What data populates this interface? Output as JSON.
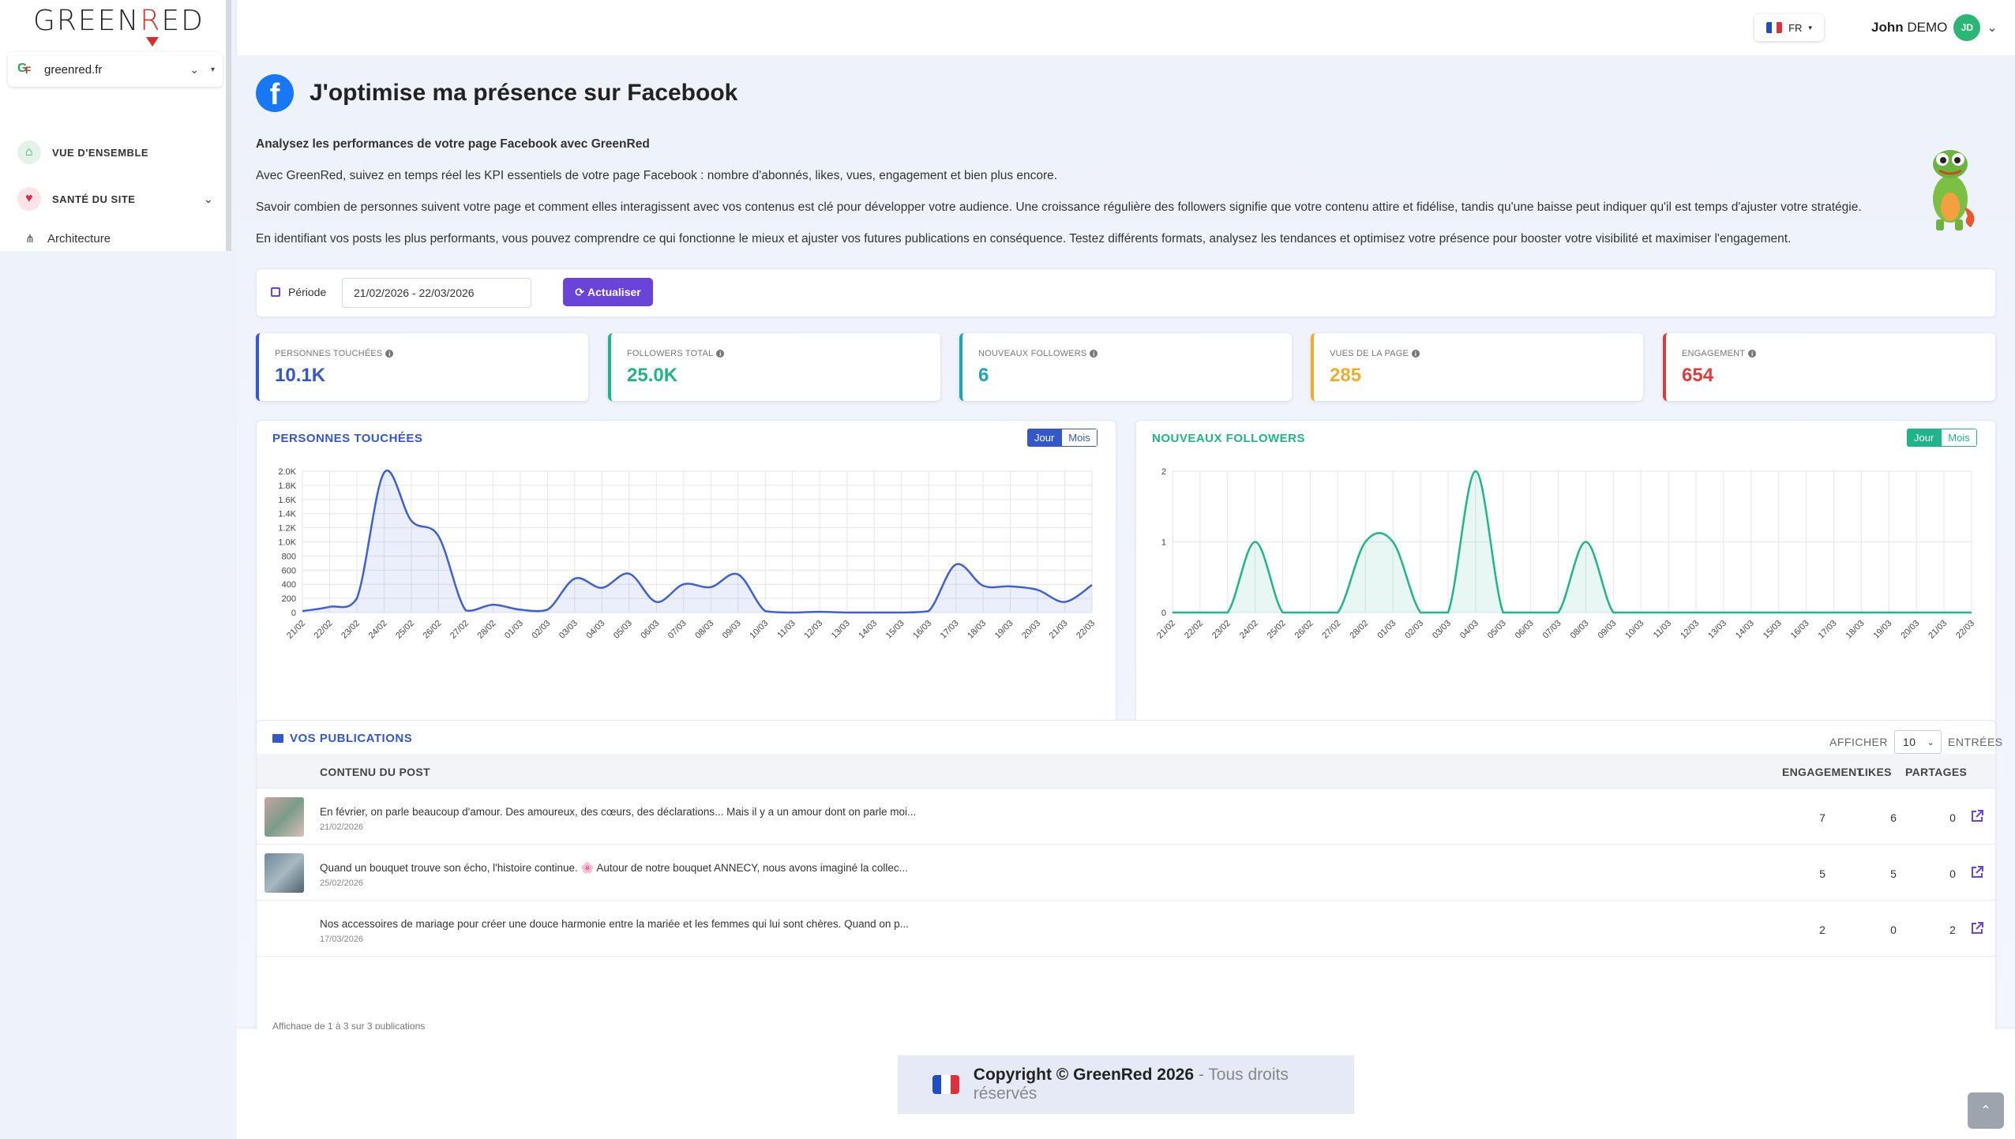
{
  "brand": {
    "logo_pre": "GREEN",
    "logo_r": "R",
    "logo_post": "ED"
  },
  "sidebar": {
    "site": "greenred.fr",
    "items": [
      {
        "label": "VUE D'ENSEMBLE",
        "icon": "home-icon"
      },
      {
        "label": "SANTÉ DU SITE",
        "icon": "heart-pulse-icon"
      },
      {
        "label": "Architecture",
        "icon": "sitemap-icon"
      }
    ]
  },
  "topbar": {
    "lang": "FR",
    "user_first": "John",
    "user_last": "DEMO",
    "initials": "JD"
  },
  "page": {
    "title": "J'optimise ma présence sur Facebook",
    "intro_heading": "Analysez les performances de votre page Facebook avec GreenRed",
    "intro_p1": "Avec GreenRed, suivez en temps réel les KPI essentiels de votre page Facebook : nombre d'abonnés, likes, vues, engagement et bien plus encore.",
    "intro_p2": "Savoir combien de personnes suivent votre page et comment elles interagissent avec vos contenus est clé pour développer votre audience. Une croissance régulière des followers signifie que votre contenu attire et fidélise, tandis qu'une baisse peut indiquer qu'il est temps d'ajuster votre stratégie.",
    "intro_p3": "En identifiant vos posts les plus performants, vous pouvez comprendre ce qui fonctionne le mieux et ajuster vos futures publications en conséquence. Testez différents formats, analysez les tendances et optimisez votre présence pour booster votre visibilité et maximiser l'engagement."
  },
  "period": {
    "label": "Période",
    "value": "21/02/2026 - 22/03/2026",
    "refresh": "Actualiser"
  },
  "kpis": [
    {
      "label": "PERSONNES TOUCHÉES",
      "value": "10.1K",
      "color": "#3457c9"
    },
    {
      "label": "FOLLOWERS TOTAL",
      "value": "25.0K",
      "color": "#1fb58a"
    },
    {
      "label": "NOUVEAUX FOLLOWERS",
      "value": "6",
      "color": "#1aa6b7"
    },
    {
      "label": "VUES DE LA PAGE",
      "value": "285",
      "color": "#f0ad2d"
    },
    {
      "label": "ENGAGEMENT",
      "value": "654",
      "color": "#e03a3a"
    }
  ],
  "charts": {
    "reach_title": "PERSONNES TOUCHÉES",
    "followers_title": "NOUVEAUX FOLLOWERS",
    "toggle_day": "Jour",
    "toggle_month": "Mois"
  },
  "chart_data": [
    {
      "type": "area",
      "title": "PERSONNES TOUCHÉES",
      "color": "#3f5fd6",
      "x": [
        "21/02",
        "22/02",
        "23/02",
        "24/02",
        "25/02",
        "26/02",
        "27/02",
        "28/02",
        "01/03",
        "02/03",
        "03/03",
        "04/03",
        "05/03",
        "06/03",
        "07/03",
        "08/03",
        "09/03",
        "10/03",
        "11/03",
        "12/03",
        "13/03",
        "14/03",
        "15/03",
        "16/03",
        "17/03",
        "18/03",
        "19/03",
        "20/03",
        "21/03",
        "22/03"
      ],
      "y": [
        20,
        80,
        200,
        1980,
        1300,
        1080,
        30,
        110,
        40,
        40,
        480,
        350,
        550,
        150,
        400,
        360,
        540,
        20,
        0,
        10,
        0,
        0,
        0,
        20,
        680,
        380,
        370,
        320,
        150,
        390
      ],
      "ylim": [
        0,
        2000
      ],
      "yticks": [
        "0",
        "200",
        "400",
        "600",
        "800",
        "1.0K",
        "1.2K",
        "1.4K",
        "1.6K",
        "1.8K",
        "2.0K"
      ]
    },
    {
      "type": "area",
      "title": "NOUVEAUX FOLLOWERS",
      "color": "#1fb58a",
      "x": [
        "21/02",
        "22/02",
        "23/02",
        "24/02",
        "25/02",
        "26/02",
        "27/02",
        "28/02",
        "01/03",
        "02/03",
        "03/03",
        "04/03",
        "05/03",
        "06/03",
        "07/03",
        "08/03",
        "09/03",
        "10/03",
        "11/03",
        "12/03",
        "13/03",
        "14/03",
        "15/03",
        "16/03",
        "17/03",
        "18/03",
        "19/03",
        "20/03",
        "21/03",
        "22/03"
      ],
      "y": [
        0,
        0,
        0,
        1,
        0,
        0,
        0,
        1,
        1,
        0,
        0,
        2,
        0,
        0,
        0,
        1,
        0,
        0,
        0,
        0,
        0,
        0,
        0,
        0,
        0,
        0,
        0,
        0,
        0,
        0
      ],
      "ylim": [
        0,
        2
      ],
      "yticks": [
        "0",
        "1",
        "2"
      ]
    }
  ],
  "publications": {
    "title": "VOS PUBLICATIONS",
    "show": "AFFICHER",
    "entries_value": "10",
    "entries": "ENTRÉES",
    "cols": {
      "content": "CONTENU DU POST",
      "engagement": "ENGAGEMENT",
      "likes": "LIKES",
      "shares": "PARTAGES"
    },
    "rows": [
      {
        "text": "En février, on parle beaucoup d'amour. Des amoureux, des cœurs, des déclarations... Mais il y a un amour dont on parle moi...",
        "date": "21/02/2026",
        "engagement": "7",
        "likes": "6",
        "shares": "0"
      },
      {
        "text": "Quand un bouquet trouve son écho, l'histoire continue. 🌸 Autour de notre bouquet ANNECY, nous avons imaginé la collec...",
        "date": "25/02/2026",
        "engagement": "5",
        "likes": "5",
        "shares": "0"
      },
      {
        "text": "Nos accessoires de mariage pour créer une douce harmonie entre la mariée et les femmes qui lui sont chères. Quand on p...",
        "date": "17/03/2026",
        "engagement": "2",
        "likes": "0",
        "shares": "2"
      }
    ],
    "footer": "Affichage de 1 à 3 sur 3 publications"
  },
  "footer": {
    "copy": "Copyright © GreenRed 2026",
    "rights": "- Tous droits réservés"
  }
}
